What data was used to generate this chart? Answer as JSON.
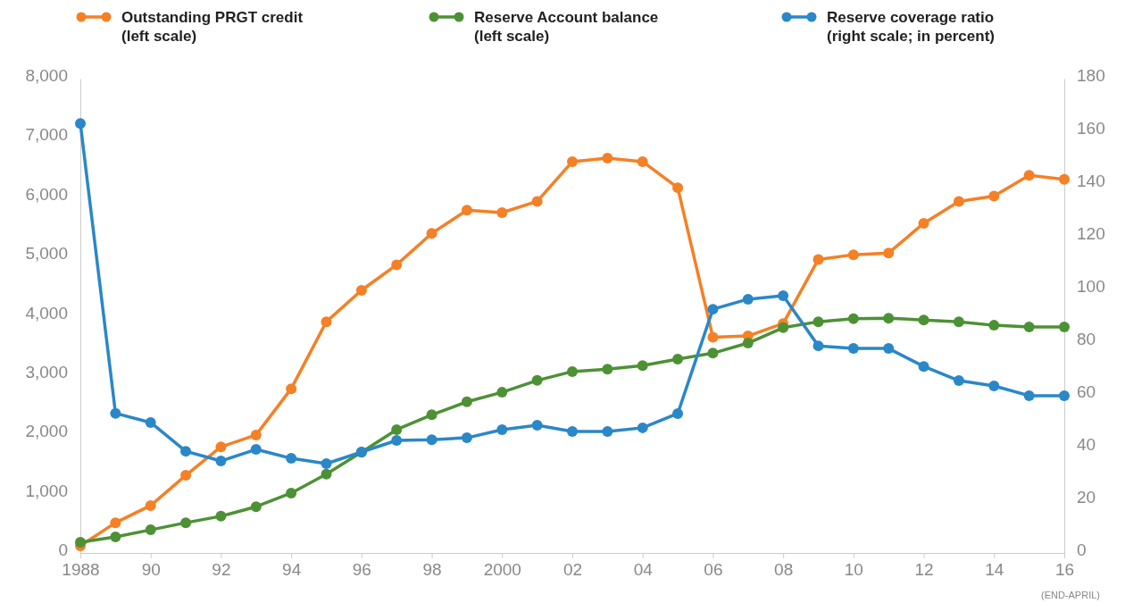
{
  "chart_data": {
    "type": "line",
    "x": [
      1988,
      1989,
      1990,
      1991,
      1992,
      1993,
      1994,
      1995,
      1996,
      1997,
      1998,
      1999,
      2000,
      2001,
      2002,
      2003,
      2004,
      2005,
      2006,
      2007,
      2008,
      2009,
      2010,
      2011,
      2012,
      2013,
      2014,
      2015,
      2016
    ],
    "series": [
      {
        "name": "Outstanding PRGT credit\n(left scale)",
        "color": "#f58025",
        "values": [
          120,
          510,
          800,
          1310,
          1790,
          1990,
          2770,
          3900,
          4430,
          4860,
          5390,
          5780,
          5740,
          5930,
          6600,
          6660,
          6600,
          6160,
          3640,
          3660,
          3870,
          4950,
          5030,
          5060,
          5560,
          5930,
          6020,
          6370,
          6300
        ]
      },
      {
        "name": "Reserve Account balance\n(left scale)",
        "color": "#4d9135",
        "values": [
          180,
          270,
          390,
          510,
          620,
          780,
          1010,
          1330,
          1700,
          2080,
          2330,
          2550,
          2710,
          2910,
          3060,
          3100,
          3160,
          3270,
          3370,
          3540,
          3800,
          3900,
          3950,
          3960,
          3930,
          3900,
          3840,
          3810,
          3810
        ]
      },
      {
        "name": "Reserve coverage ratio\n(right scale; in percent)",
        "color": "#2a87c8",
        "axis": "y2",
        "values": [
          163,
          53,
          49.5,
          38.6,
          34.9,
          39.3,
          35.9,
          33.9,
          38.3,
          42.7,
          43,
          43.7,
          46.8,
          48.5,
          46.1,
          46.1,
          47.5,
          52.9,
          92.5,
          96.3,
          97.6,
          78.6,
          77.6,
          77.6,
          70.8,
          65.4,
          63.4,
          59.7,
          59.7
        ]
      }
    ],
    "xlim": [
      1988,
      2016
    ],
    "xticks": [
      1988,
      {
        "value": 1990,
        "label": "90"
      },
      {
        "value": 1992,
        "label": "92"
      },
      {
        "value": 1994,
        "label": "94"
      },
      {
        "value": 1996,
        "label": "96"
      },
      {
        "value": 1998,
        "label": "98"
      },
      2000,
      {
        "value": 2002,
        "label": "02"
      },
      {
        "value": 2004,
        "label": "04"
      },
      {
        "value": 2006,
        "label": "06"
      },
      {
        "value": 2008,
        "label": "08"
      },
      {
        "value": 2010,
        "label": "10"
      },
      {
        "value": 2012,
        "label": "12"
      },
      {
        "value": 2014,
        "label": "14"
      },
      {
        "value": 2016,
        "label": "16"
      }
    ],
    "ylim": [
      0,
      8000
    ],
    "yticks": [
      {
        "value": 0,
        "label": "0"
      },
      {
        "value": 1000,
        "label": "1,000"
      },
      {
        "value": 2000,
        "label": "2,000"
      },
      {
        "value": 3000,
        "label": "3,000"
      },
      {
        "value": 4000,
        "label": "4,000"
      },
      {
        "value": 5000,
        "label": "5,000"
      },
      {
        "value": 6000,
        "label": "6,000"
      },
      {
        "value": 7000,
        "label": "7,000"
      },
      {
        "value": 8000,
        "label": "8,000"
      }
    ],
    "y2lim": [
      0,
      180
    ],
    "y2ticks": [
      0,
      20,
      40,
      60,
      80,
      100,
      120,
      140,
      160,
      180
    ],
    "annotations": [
      "(END-APRIL)"
    ],
    "legend": "top",
    "marker": "circle",
    "line_style": "solid"
  }
}
